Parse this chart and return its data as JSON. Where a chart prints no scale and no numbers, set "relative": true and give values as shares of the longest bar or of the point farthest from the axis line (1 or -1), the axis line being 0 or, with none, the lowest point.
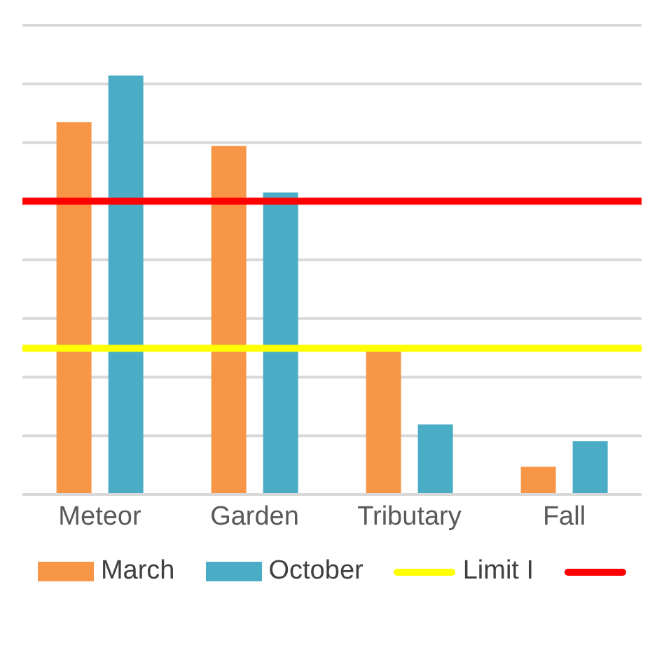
{
  "chart_data": {
    "type": "bar",
    "relative": true,
    "categories": [
      "Meteor",
      "Garden",
      "Tributary",
      "Fall"
    ],
    "series": [
      {
        "name": "March",
        "color": "#f79646",
        "values": [
          0.889,
          0.832,
          0.342,
          0.066
        ]
      },
      {
        "name": "October",
        "color": "#4bacc6",
        "values": [
          1,
          0.721,
          0.167,
          0.127
        ]
      }
    ],
    "ref_lines": [
      {
        "axis": "y",
        "value": 0.349,
        "label": "Limit I",
        "color": "#ffff00"
      },
      {
        "axis": "y",
        "value": 0.7,
        "label": null,
        "color": "#ff0000"
      }
    ],
    "grid": "y",
    "legend": "bottom"
  }
}
